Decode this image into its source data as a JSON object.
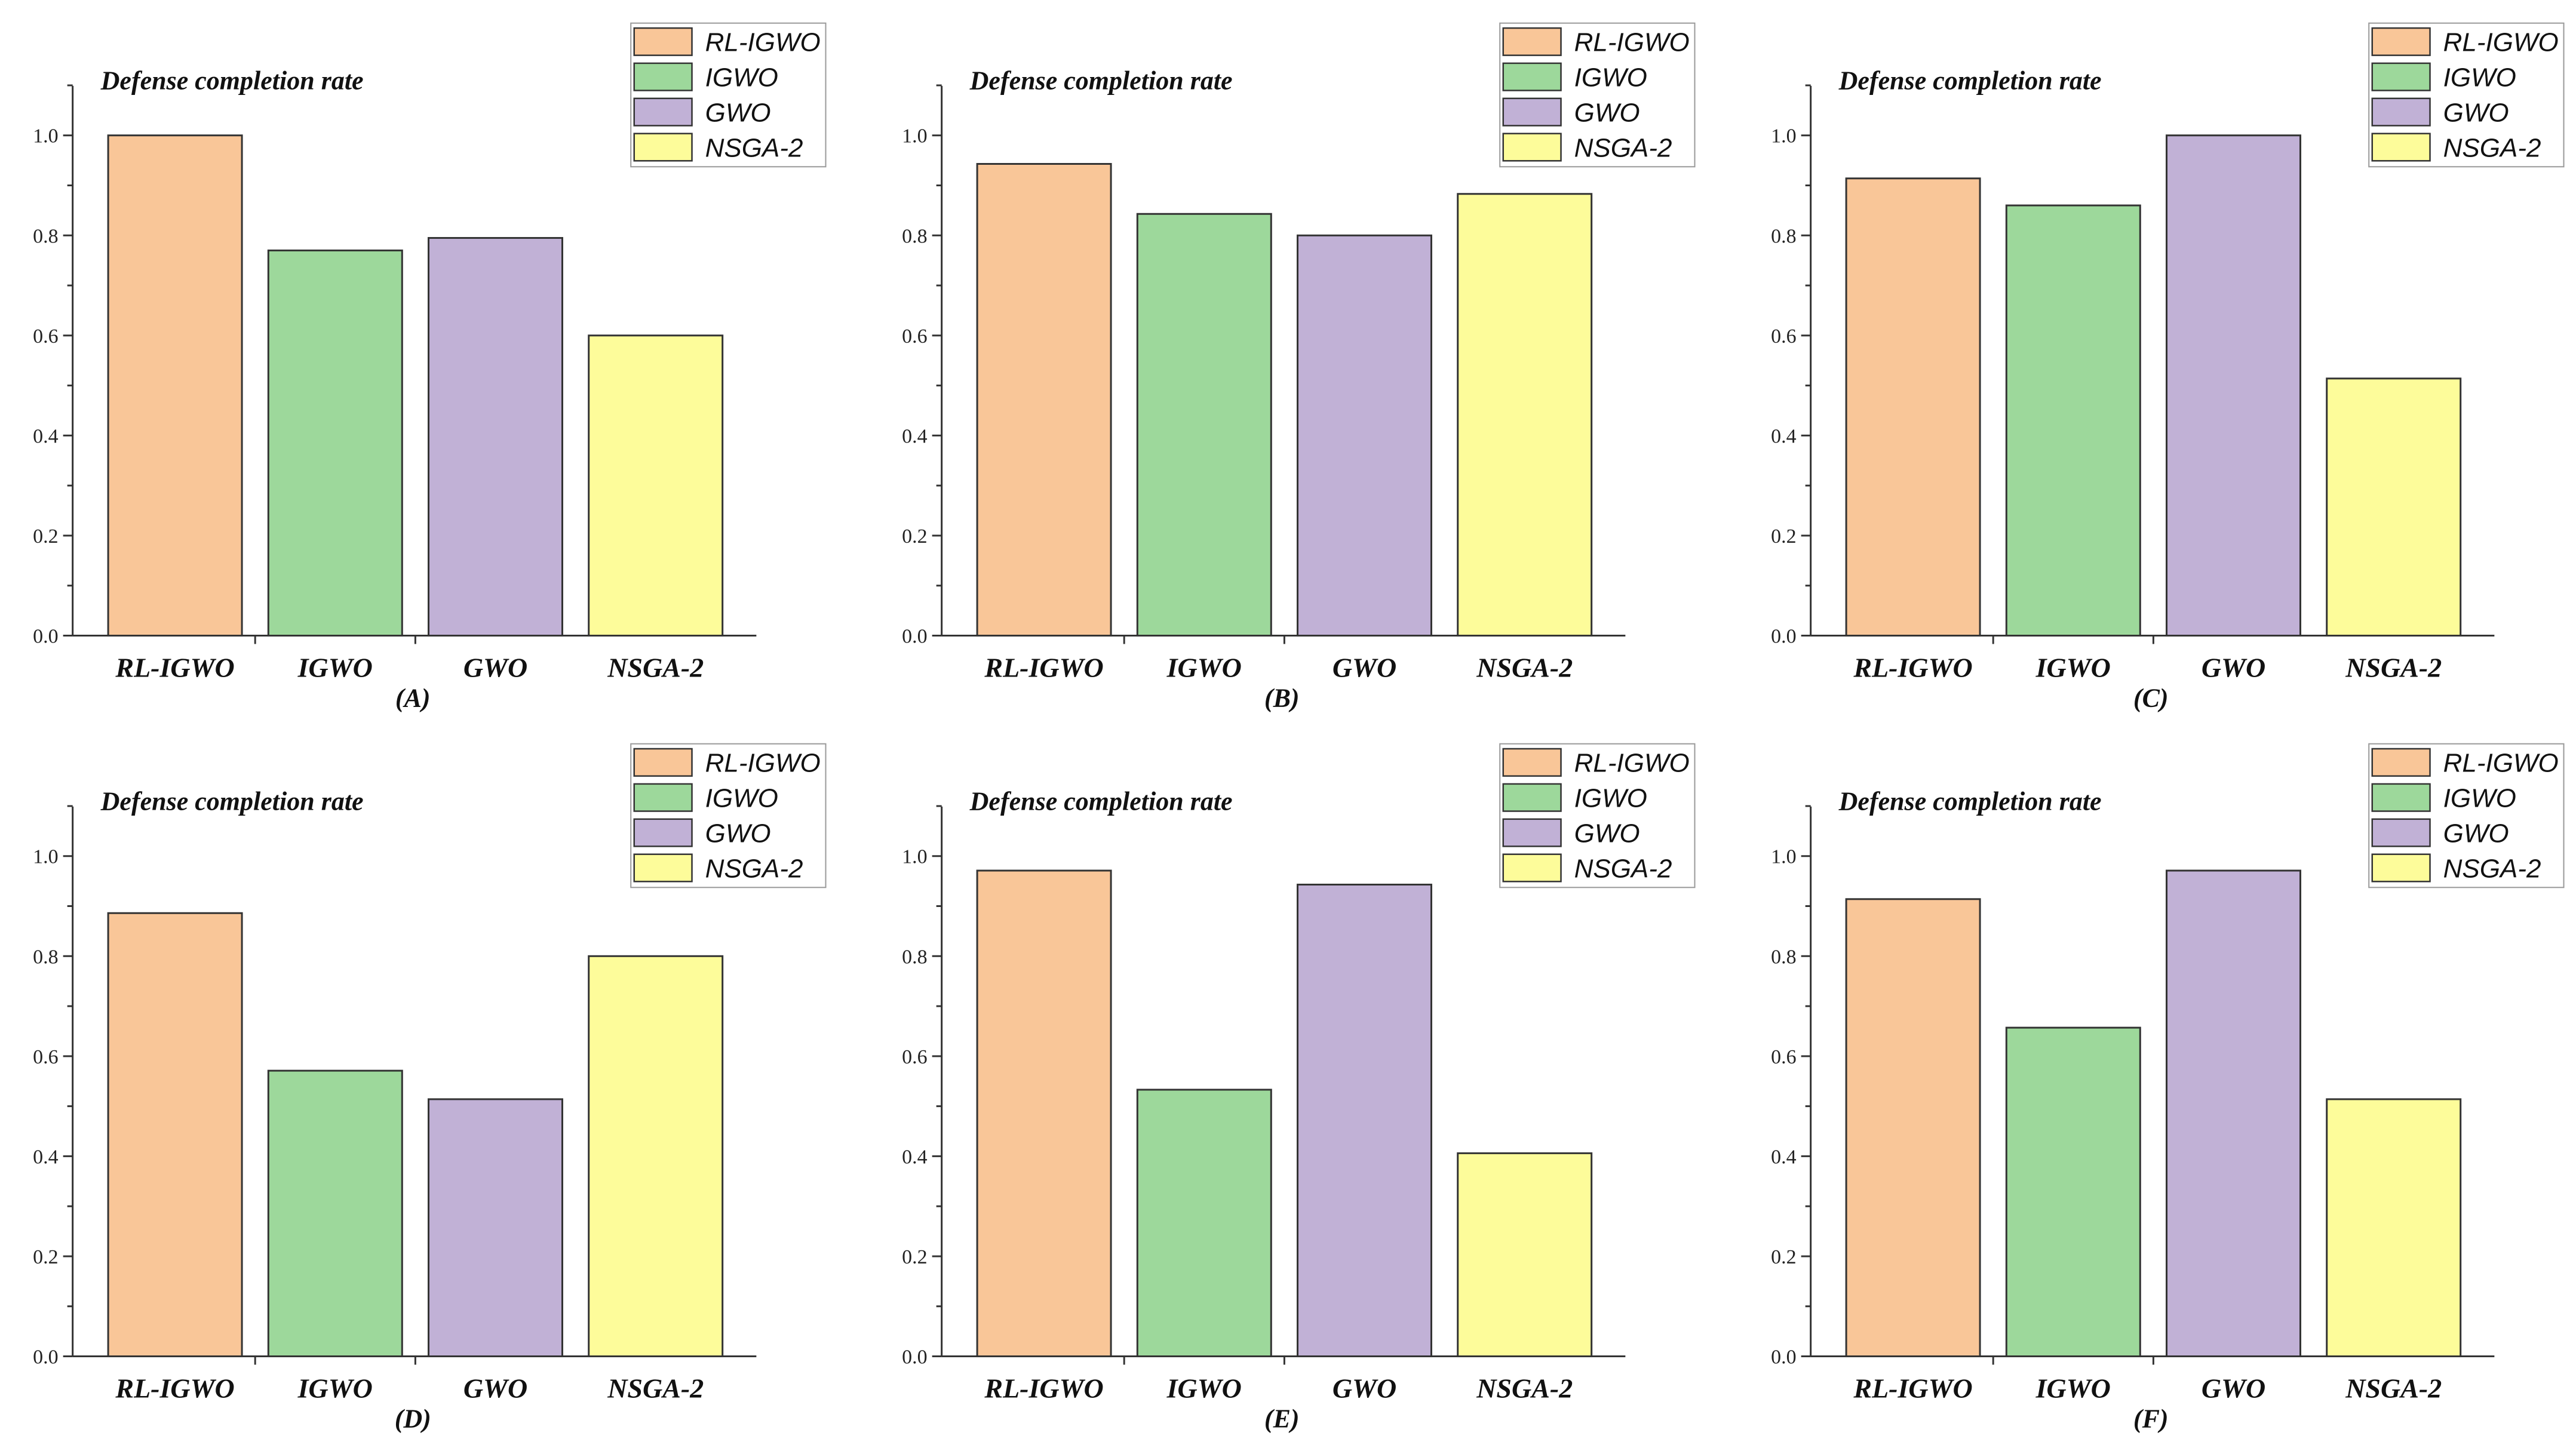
{
  "chart_data": [
    {
      "type": "bar",
      "panel_label": "(A)",
      "title": "Defense completion rate",
      "categories": [
        "RL-IGWO",
        "IGWO",
        "GWO",
        "NSGA-2"
      ],
      "values": [
        1.0,
        0.77,
        0.795,
        0.6
      ],
      "ylim": [
        0,
        1.1
      ],
      "yticks": [
        "0.0",
        "0.2",
        "0.4",
        "0.6",
        "0.8",
        "1.0"
      ],
      "legend": [
        "RL-IGWO",
        "IGWO",
        "GWO",
        "NSGA-2"
      ],
      "legend_position": "top-right"
    },
    {
      "type": "bar",
      "panel_label": "(B)",
      "title": "Defense completion rate",
      "categories": [
        "RL-IGWO",
        "IGWO",
        "GWO",
        "NSGA-2"
      ],
      "values": [
        0.943,
        0.843,
        0.8,
        0.883
      ],
      "ylim": [
        0,
        1.1
      ],
      "yticks": [
        "0.0",
        "0.2",
        "0.4",
        "0.6",
        "0.8",
        "1.0"
      ],
      "legend": [
        "RL-IGWO",
        "IGWO",
        "GWO",
        "NSGA-2"
      ],
      "legend_position": "top-right"
    },
    {
      "type": "bar",
      "panel_label": "(C)",
      "title": "Defense completion rate",
      "categories": [
        "RL-IGWO",
        "IGWO",
        "GWO",
        "NSGA-2"
      ],
      "values": [
        0.914,
        0.86,
        1.0,
        0.514
      ],
      "ylim": [
        0,
        1.1
      ],
      "yticks": [
        "0.0",
        "0.2",
        "0.4",
        "0.6",
        "0.8",
        "1.0"
      ],
      "legend": [
        "RL-IGWO",
        "IGWO",
        "GWO",
        "NSGA-2"
      ],
      "legend_position": "top-right"
    },
    {
      "type": "bar",
      "panel_label": "(D)",
      "title": "Defense completion rate",
      "categories": [
        "RL-IGWO",
        "IGWO",
        "GWO",
        "NSGA-2"
      ],
      "values": [
        0.886,
        0.571,
        0.514,
        0.8
      ],
      "ylim": [
        0,
        1.1
      ],
      "yticks": [
        "0.0",
        "0.2",
        "0.4",
        "0.6",
        "0.8",
        "1.0"
      ],
      "legend": [
        "RL-IGWO",
        "IGWO",
        "GWO",
        "NSGA-2"
      ],
      "legend_position": "top-right"
    },
    {
      "type": "bar",
      "panel_label": "(E)",
      "title": "Defense completion rate",
      "categories": [
        "RL-IGWO",
        "IGWO",
        "GWO",
        "NSGA-2"
      ],
      "values": [
        0.971,
        0.533,
        0.943,
        0.406
      ],
      "ylim": [
        0,
        1.1
      ],
      "yticks": [
        "0.0",
        "0.2",
        "0.4",
        "0.6",
        "0.8",
        "1.0"
      ],
      "legend": [
        "RL-IGWO",
        "IGWO",
        "GWO",
        "NSGA-2"
      ],
      "legend_position": "top-right"
    },
    {
      "type": "bar",
      "panel_label": "(F)",
      "title": "Defense completion rate",
      "categories": [
        "RL-IGWO",
        "IGWO",
        "GWO",
        "NSGA-2"
      ],
      "values": [
        0.914,
        0.657,
        0.971,
        0.514
      ],
      "ylim": [
        0,
        1.1
      ],
      "yticks": [
        "0.0",
        "0.2",
        "0.4",
        "0.6",
        "0.8",
        "1.0"
      ],
      "legend": [
        "RL-IGWO",
        "IGWO",
        "GWO",
        "NSGA-2"
      ],
      "legend_position": "top-right"
    }
  ],
  "colors": {
    "series": [
      "#f9c698",
      "#9dd89b",
      "#c1b1d6",
      "#fdfc9a"
    ],
    "bar_edge": "#333333",
    "axis": "#333333"
  }
}
